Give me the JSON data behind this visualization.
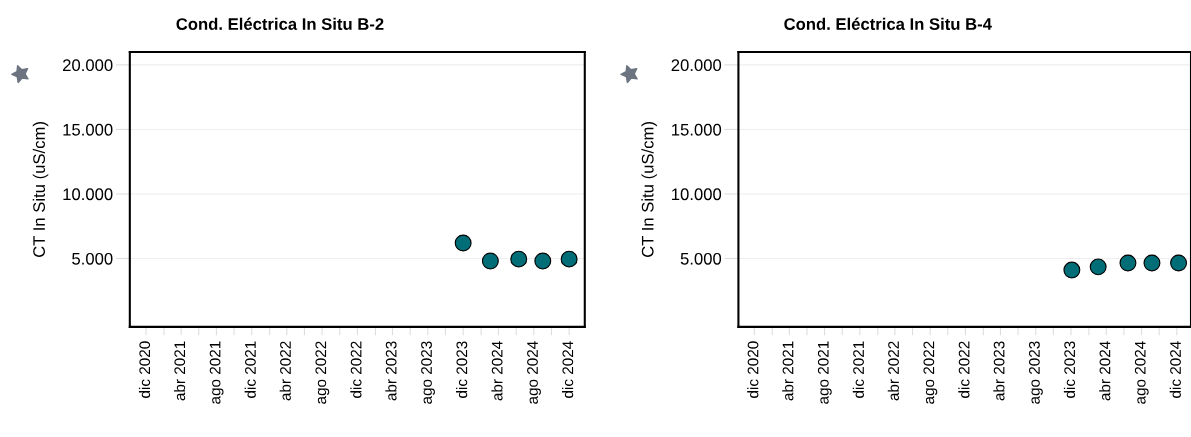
{
  "chart_data": [
    {
      "type": "scatter",
      "title": "Cond. Eléctrica In Situ B-2",
      "ylabel": "CT In Situ (uS/cm)",
      "marker": "circle",
      "grid": "y",
      "xlim": [
        "2020-10-06",
        "2025-01-24"
      ],
      "ylim": [
        -300,
        21000
      ],
      "xticks": [
        {
          "value": "2020-12-01",
          "label": "dic 2020"
        },
        {
          "value": "2021-02-01",
          "label": null
        },
        {
          "value": "2021-04-01",
          "label": "abr 2021"
        },
        {
          "value": "2021-06-01",
          "label": null
        },
        {
          "value": "2021-08-01",
          "label": "ago 2021"
        },
        {
          "value": "2021-10-01",
          "label": null
        },
        {
          "value": "2021-12-01",
          "label": "dic 2021"
        },
        {
          "value": "2022-02-01",
          "label": null
        },
        {
          "value": "2022-04-01",
          "label": "abr 2022"
        },
        {
          "value": "2022-06-01",
          "label": null
        },
        {
          "value": "2022-08-01",
          "label": "ago 2022"
        },
        {
          "value": "2022-10-01",
          "label": null
        },
        {
          "value": "2022-12-01",
          "label": "dic 2022"
        },
        {
          "value": "2023-02-01",
          "label": null
        },
        {
          "value": "2023-04-01",
          "label": "abr 2023"
        },
        {
          "value": "2023-06-01",
          "label": null
        },
        {
          "value": "2023-08-01",
          "label": "ago 2023"
        },
        {
          "value": "2023-10-01",
          "label": null
        },
        {
          "value": "2023-12-01",
          "label": "dic 2023"
        },
        {
          "value": "2024-02-01",
          "label": null
        },
        {
          "value": "2024-04-01",
          "label": "abr 2024"
        },
        {
          "value": "2024-06-01",
          "label": null
        },
        {
          "value": "2024-08-01",
          "label": "ago 2024"
        },
        {
          "value": "2024-10-01",
          "label": null
        },
        {
          "value": "2024-12-01",
          "label": "dic 2024"
        }
      ],
      "yticks": [
        {
          "value": 5000,
          "label": "5.000"
        },
        {
          "value": 10000,
          "label": "10.000"
        },
        {
          "value": 15000,
          "label": "15.000"
        },
        {
          "value": 20000,
          "label": "20.000"
        }
      ],
      "series": [
        {
          "color": "#006d77",
          "x": [
            "2023-12-01",
            "2024-03-04",
            "2024-06-10",
            "2024-09-01",
            "2024-12-01"
          ],
          "values": [
            6200,
            4800,
            4950,
            4800,
            4950
          ]
        }
      ]
    },
    {
      "type": "scatter",
      "title": "Cond. Eléctrica In Situ B-4",
      "ylabel": "CT In Situ (uS/cm)",
      "marker": "circle",
      "grid": "y",
      "xlim": [
        "2020-10-07",
        "2025-01-19"
      ],
      "ylim": [
        -300,
        21000
      ],
      "xticks": [
        {
          "value": "2020-12-01",
          "label": "dic 2020"
        },
        {
          "value": "2021-02-01",
          "label": null
        },
        {
          "value": "2021-04-01",
          "label": "abr 2021"
        },
        {
          "value": "2021-06-01",
          "label": null
        },
        {
          "value": "2021-08-01",
          "label": "ago 2021"
        },
        {
          "value": "2021-10-01",
          "label": null
        },
        {
          "value": "2021-12-01",
          "label": "dic 2021"
        },
        {
          "value": "2022-02-01",
          "label": null
        },
        {
          "value": "2022-04-01",
          "label": "abr 2022"
        },
        {
          "value": "2022-06-01",
          "label": null
        },
        {
          "value": "2022-08-01",
          "label": "ago 2022"
        },
        {
          "value": "2022-10-01",
          "label": null
        },
        {
          "value": "2022-12-01",
          "label": "dic 2022"
        },
        {
          "value": "2023-02-01",
          "label": null
        },
        {
          "value": "2023-04-01",
          "label": "abr 2023"
        },
        {
          "value": "2023-06-01",
          "label": null
        },
        {
          "value": "2023-08-01",
          "label": "ago 2023"
        },
        {
          "value": "2023-10-01",
          "label": null
        },
        {
          "value": "2023-12-01",
          "label": "dic 2023"
        },
        {
          "value": "2024-02-01",
          "label": null
        },
        {
          "value": "2024-04-01",
          "label": "abr 2024"
        },
        {
          "value": "2024-06-01",
          "label": null
        },
        {
          "value": "2024-08-01",
          "label": "ago 2024"
        },
        {
          "value": "2024-10-01",
          "label": null
        },
        {
          "value": "2024-12-01",
          "label": "dic 2024"
        }
      ],
      "yticks": [
        {
          "value": 5000,
          "label": "5.000"
        },
        {
          "value": 10000,
          "label": "10.000"
        },
        {
          "value": 15000,
          "label": "15.000"
        },
        {
          "value": 20000,
          "label": "20.000"
        }
      ],
      "series": [
        {
          "color": "#006d77",
          "x": [
            "2023-12-04",
            "2024-03-04",
            "2024-06-15",
            "2024-09-06",
            "2024-12-07"
          ],
          "values": [
            4100,
            4350,
            4650,
            4650,
            4650
          ]
        }
      ]
    }
  ]
}
